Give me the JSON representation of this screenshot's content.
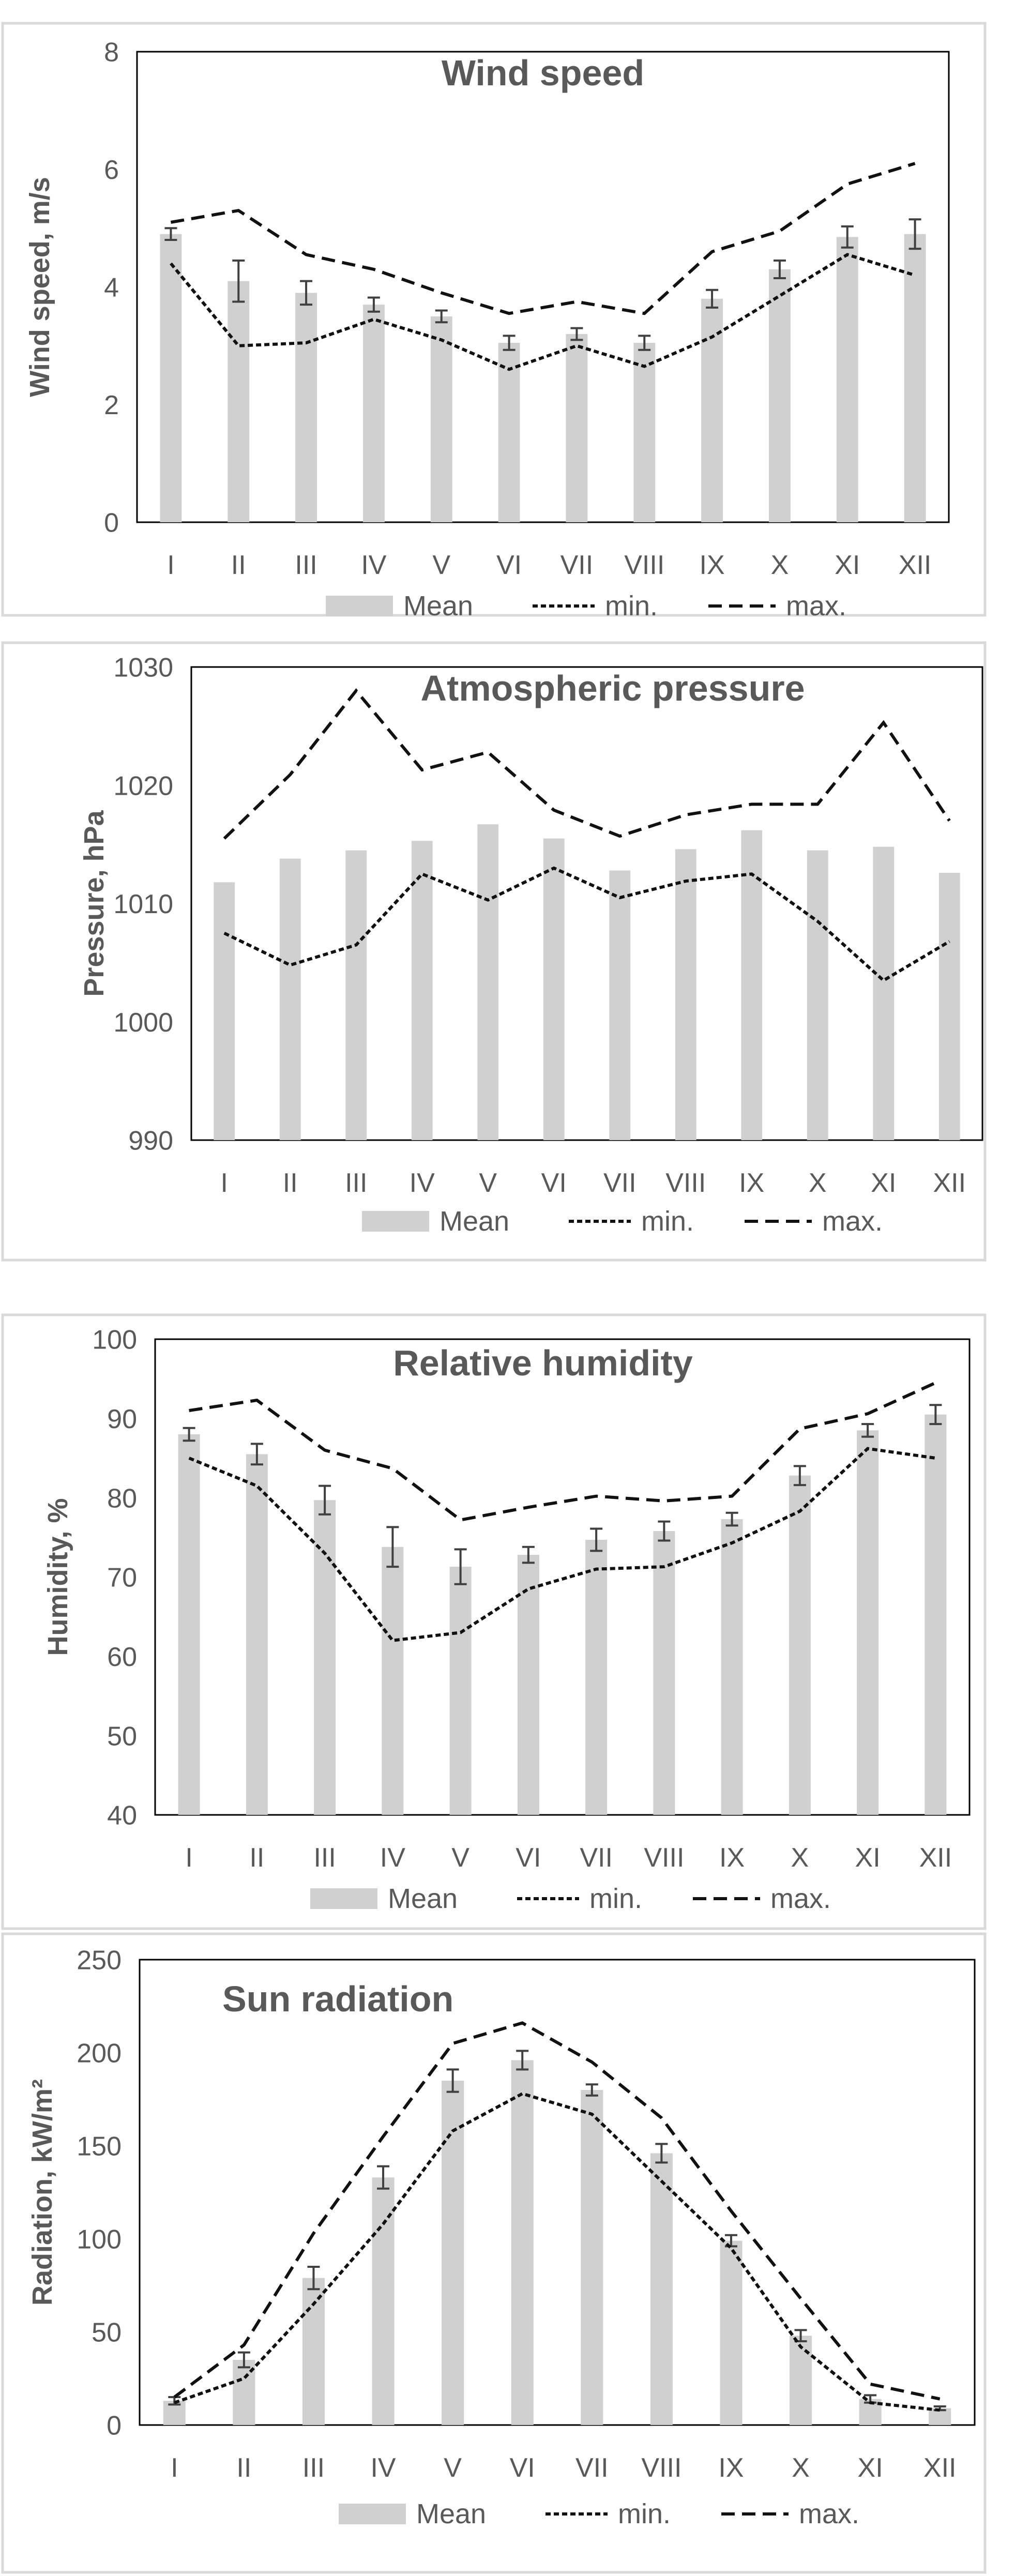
{
  "chart_data": [
    {
      "type": "bar",
      "title": "Wind speed",
      "ylabel": "Wind speed, m/s",
      "xlabel": "",
      "categories": [
        "I",
        "II",
        "III",
        "IV",
        "V",
        "VI",
        "VII",
        "VIII",
        "IX",
        "X",
        "XI",
        "XII"
      ],
      "ylim": [
        0,
        8
      ],
      "yticks": [
        0,
        2,
        4,
        6,
        8
      ],
      "series": [
        {
          "name": "Mean",
          "kind": "bar",
          "values": [
            4.9,
            4.1,
            3.9,
            3.7,
            3.5,
            3.05,
            3.2,
            3.05,
            3.8,
            4.3,
            4.85,
            4.9
          ],
          "errors": [
            0.1,
            0.35,
            0.2,
            0.12,
            0.1,
            0.12,
            0.1,
            0.12,
            0.15,
            0.15,
            0.18,
            0.25
          ]
        },
        {
          "name": "min.",
          "kind": "line",
          "values": [
            4.4,
            3.0,
            3.05,
            3.45,
            3.1,
            2.6,
            3.0,
            2.65,
            3.15,
            3.85,
            4.55,
            4.2
          ]
        },
        {
          "name": "max.",
          "kind": "line",
          "values": [
            5.1,
            5.3,
            4.55,
            4.3,
            3.9,
            3.55,
            3.75,
            3.55,
            4.6,
            4.95,
            5.75,
            6.1
          ]
        }
      ],
      "legend": [
        "Mean",
        "min.",
        "max."
      ],
      "legend_position": "bottom"
    },
    {
      "type": "bar",
      "title": "Atmospheric pressure",
      "ylabel": "Pressure, hPa",
      "xlabel": "",
      "categories": [
        "I",
        "II",
        "III",
        "IV",
        "V",
        "VI",
        "VII",
        "VIII",
        "IX",
        "X",
        "XI",
        "XII"
      ],
      "ylim": [
        990,
        1030
      ],
      "yticks": [
        990,
        1000,
        1010,
        1020,
        1030
      ],
      "series": [
        {
          "name": "Mean",
          "kind": "bar",
          "values": [
            1011.8,
            1013.8,
            1014.5,
            1015.3,
            1016.7,
            1015.5,
            1012.8,
            1014.6,
            1016.2,
            1014.5,
            1014.8,
            1012.6
          ]
        },
        {
          "name": "min.",
          "kind": "line",
          "values": [
            1007.5,
            1004.8,
            1006.5,
            1012.5,
            1010.3,
            1013.0,
            1010.5,
            1011.9,
            1012.5,
            1008.5,
            1003.5,
            1006.8
          ]
        },
        {
          "name": "max.",
          "kind": "line",
          "values": [
            1015.5,
            1020.9,
            1028.0,
            1021.3,
            1022.8,
            1017.9,
            1015.7,
            1017.5,
            1018.4,
            1018.4,
            1025.3,
            1017.0
          ]
        }
      ],
      "legend": [
        "Mean",
        "min.",
        "max."
      ],
      "legend_position": "bottom"
    },
    {
      "type": "bar",
      "title": "Relative humidity",
      "ylabel": "Humidity, %",
      "xlabel": "",
      "categories": [
        "I",
        "II",
        "III",
        "IV",
        "V",
        "VI",
        "VII",
        "VIII",
        "IX",
        "X",
        "XI",
        "XII"
      ],
      "ylim": [
        40,
        100
      ],
      "yticks": [
        40,
        50,
        60,
        70,
        80,
        90,
        100
      ],
      "series": [
        {
          "name": "Mean",
          "kind": "bar",
          "values": [
            88.0,
            85.5,
            79.7,
            73.8,
            71.3,
            72.8,
            74.7,
            75.8,
            77.3,
            82.8,
            88.5,
            90.5
          ],
          "errors": [
            0.8,
            1.3,
            1.8,
            2.5,
            2.2,
            1.0,
            1.4,
            1.2,
            0.8,
            1.2,
            0.8,
            1.2
          ]
        },
        {
          "name": "min.",
          "kind": "line",
          "values": [
            85.0,
            81.5,
            73.0,
            62.0,
            63.0,
            68.5,
            71.0,
            71.3,
            74.3,
            78.3,
            86.2,
            85.0
          ]
        },
        {
          "name": "max.",
          "kind": "line",
          "values": [
            91.0,
            92.3,
            86.0,
            83.7,
            77.2,
            78.8,
            80.2,
            79.6,
            80.2,
            88.7,
            90.6,
            94.5
          ]
        }
      ],
      "legend": [
        "Mean",
        "min.",
        "max."
      ],
      "legend_position": "bottom"
    },
    {
      "type": "bar",
      "title": "Sun radiation",
      "ylabel": "Radiation,  kW/m²",
      "xlabel": "",
      "categories": [
        "I",
        "II",
        "III",
        "IV",
        "V",
        "VI",
        "VII",
        "VIII",
        "IX",
        "X",
        "XI",
        "XII"
      ],
      "ylim": [
        0,
        250
      ],
      "yticks": [
        0,
        50,
        100,
        150,
        200,
        250
      ],
      "series": [
        {
          "name": "Mean",
          "kind": "bar",
          "values": [
            13,
            35,
            79,
            133,
            185,
            196,
            180,
            146,
            99,
            48,
            14,
            9
          ],
          "errors": [
            2,
            4,
            6,
            6,
            6,
            5,
            3,
            5,
            3,
            3,
            2,
            1
          ]
        },
        {
          "name": "min.",
          "kind": "line",
          "values": [
            12,
            25,
            65,
            108,
            158,
            178,
            167,
            131,
            95,
            42,
            12,
            8
          ]
        },
        {
          "name": "max.",
          "kind": "line",
          "values": [
            15,
            43,
            103,
            155,
            205,
            216,
            195,
            165,
            115,
            68,
            22,
            14
          ]
        }
      ],
      "legend": [
        "Mean",
        "min.",
        "max."
      ],
      "legend_position": "bottom"
    }
  ],
  "colors": {
    "bar": "#d0d0d0",
    "error": "#404040",
    "line": "#111111",
    "axis_text": "#595959",
    "title": "#595959",
    "plot_border": "#000000",
    "panel_border": "#d9d9d9"
  }
}
